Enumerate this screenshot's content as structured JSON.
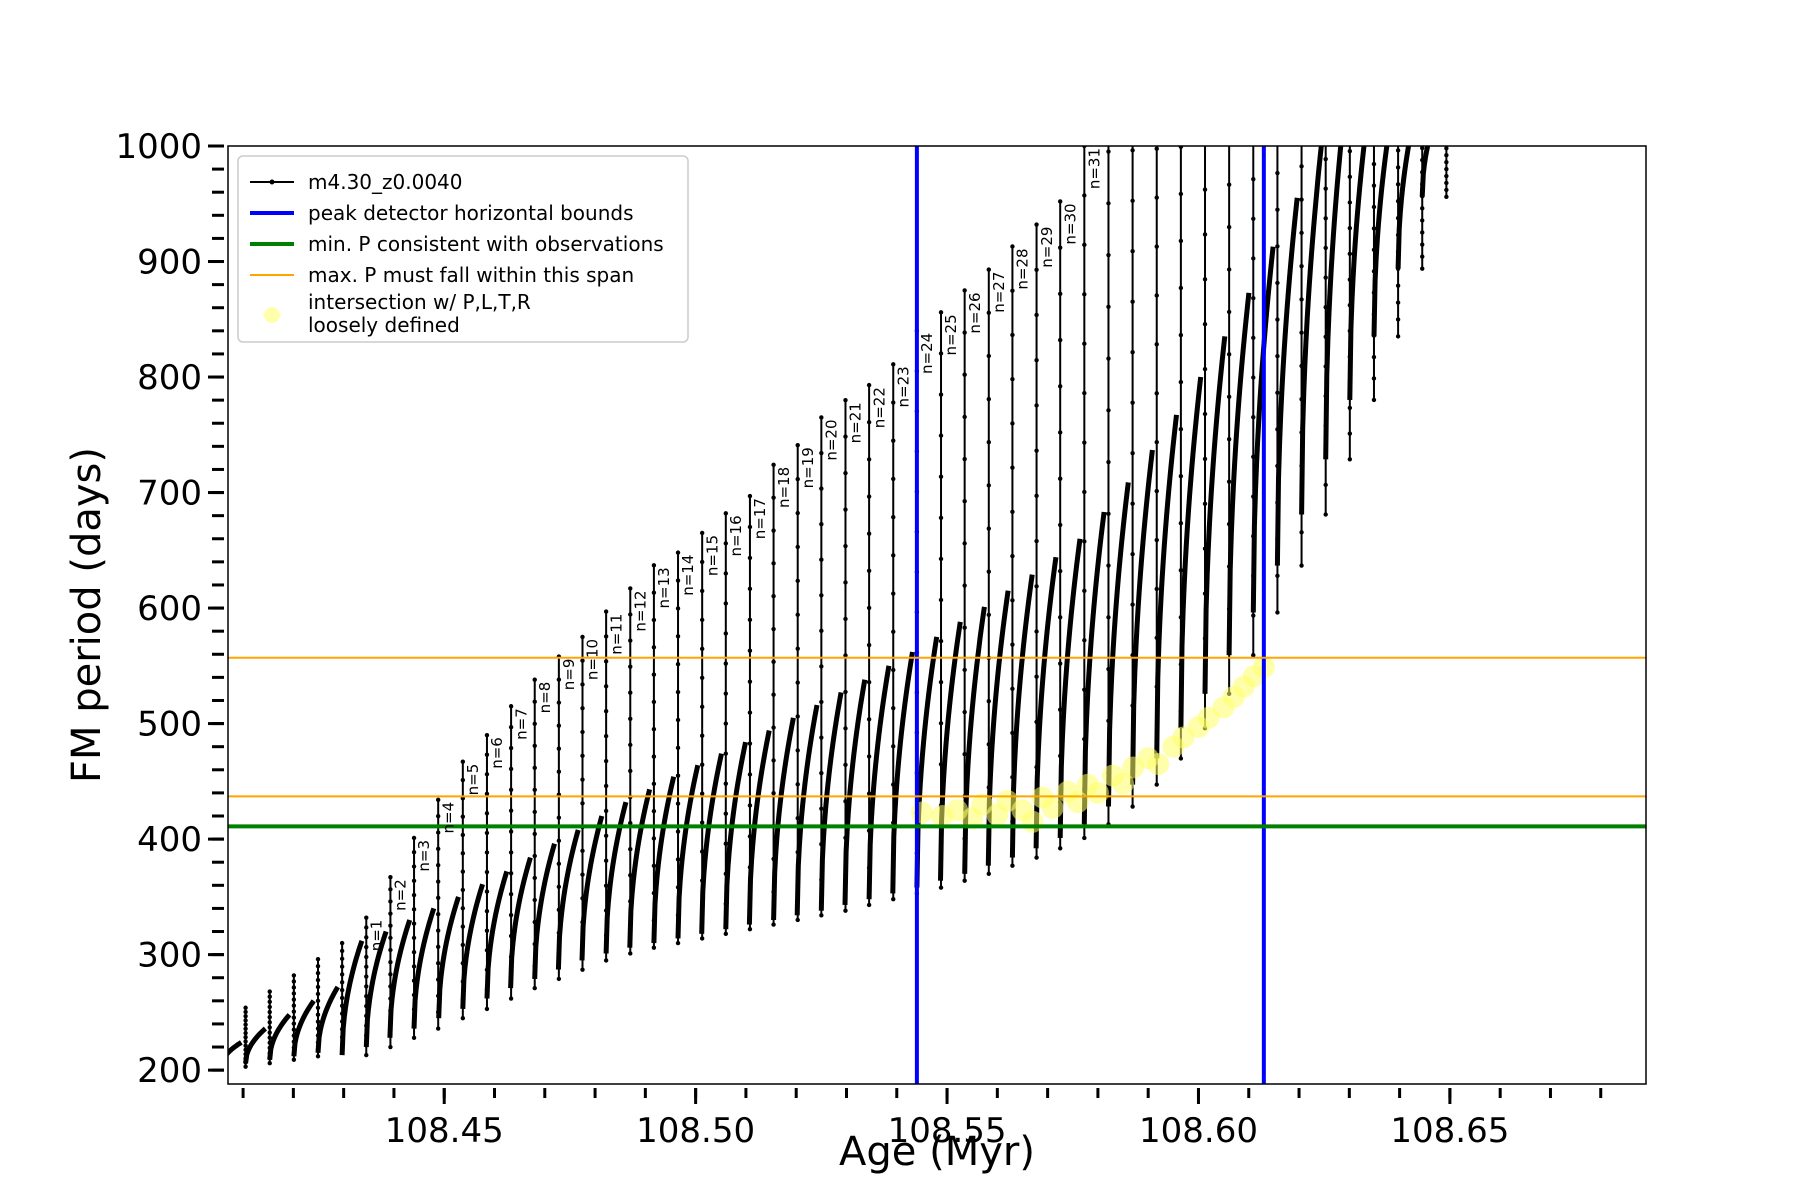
{
  "chart_data": {
    "type": "line",
    "xlabel": "Age (Myr)",
    "ylabel": "FM period (days)",
    "xlim": [
      108.407,
      108.689
    ],
    "ylim": [
      188,
      1000
    ],
    "x_ticks": [
      108.45,
      108.5,
      108.55,
      108.6,
      108.65
    ],
    "x_tick_labels": [
      "108.45",
      "108.50",
      "108.55",
      "108.60",
      "108.65"
    ],
    "y_ticks": [
      200,
      300,
      400,
      500,
      600,
      700,
      800,
      900,
      1000
    ],
    "y_tick_labels": [
      "200",
      "300",
      "400",
      "500",
      "600",
      "700",
      "800",
      "900",
      "1000"
    ],
    "grid": false,
    "legend_position": "top-left",
    "legend": [
      {
        "label": "m4.30_z0.0040",
        "style": "line-dot",
        "color": "#000000"
      },
      {
        "label": "peak detector horizontal bounds",
        "style": "thick-line",
        "color": "#0000ff"
      },
      {
        "label": "min. P consistent with observations",
        "style": "thick-line",
        "color": "#008000"
      },
      {
        "label": "max. P must fall within this span",
        "style": "thin-line",
        "color": "#ffa500"
      },
      {
        "label": "intersection w/ P,L,T,R",
        "label2": "loosely defined",
        "style": "marker",
        "color": "#ffff66"
      }
    ],
    "series": [
      {
        "name": "m4.30_z0.0040",
        "color": "#000000",
        "pulses": [
          {
            "n": 1,
            "label": "n=1",
            "x": 108.4345,
            "top": 332,
            "base": 213,
            "envelope": 312
          },
          {
            "n": 2,
            "label": "n=2",
            "x": 108.4393,
            "top": 367,
            "base": 220,
            "envelope": 320
          },
          {
            "n": 3,
            "label": "n=3",
            "x": 108.444,
            "top": 401,
            "base": 228,
            "envelope": 330
          },
          {
            "n": 4,
            "label": "n=4",
            "x": 108.4488,
            "top": 434,
            "base": 236,
            "envelope": 340
          },
          {
            "n": 5,
            "label": "n=5",
            "x": 108.4537,
            "top": 467,
            "base": 245,
            "envelope": 350
          },
          {
            "n": 6,
            "label": "n=6",
            "x": 108.4585,
            "top": 490,
            "base": 253,
            "envelope": 361
          },
          {
            "n": 7,
            "label": "n=7",
            "x": 108.4633,
            "top": 515,
            "base": 262,
            "envelope": 372
          },
          {
            "n": 8,
            "label": "n=8",
            "x": 108.468,
            "top": 538,
            "base": 271,
            "envelope": 384
          },
          {
            "n": 9,
            "label": "n=9",
            "x": 108.4728,
            "top": 558,
            "base": 279,
            "envelope": 396
          },
          {
            "n": 10,
            "label": "n=10",
            "x": 108.4775,
            "top": 575,
            "base": 287,
            "envelope": 408
          },
          {
            "n": 11,
            "label": "n=11",
            "x": 108.4822,
            "top": 597,
            "base": 295,
            "envelope": 420
          },
          {
            "n": 12,
            "label": "n=12",
            "x": 108.487,
            "top": 617,
            "base": 301,
            "envelope": 432
          },
          {
            "n": 13,
            "label": "n=13",
            "x": 108.4917,
            "top": 637,
            "base": 306,
            "envelope": 443
          },
          {
            "n": 14,
            "label": "n=14",
            "x": 108.4965,
            "top": 648,
            "base": 310,
            "envelope": 454
          },
          {
            "n": 15,
            "label": "n=15",
            "x": 108.5013,
            "top": 665,
            "base": 314,
            "envelope": 464
          },
          {
            "n": 16,
            "label": "n=16",
            "x": 108.506,
            "top": 682,
            "base": 318,
            "envelope": 474
          },
          {
            "n": 17,
            "label": "n=17",
            "x": 108.5108,
            "top": 697,
            "base": 322,
            "envelope": 484
          },
          {
            "n": 18,
            "label": "n=18",
            "x": 108.5155,
            "top": 724,
            "base": 326,
            "envelope": 494
          },
          {
            "n": 19,
            "label": "n=19",
            "x": 108.5203,
            "top": 741,
            "base": 330,
            "envelope": 505
          },
          {
            "n": 20,
            "label": "n=20",
            "x": 108.525,
            "top": 765,
            "base": 334,
            "envelope": 516
          },
          {
            "n": 21,
            "label": "n=21",
            "x": 108.5298,
            "top": 780,
            "base": 338,
            "envelope": 527
          },
          {
            "n": 22,
            "label": "n=22",
            "x": 108.5345,
            "top": 793,
            "base": 343,
            "envelope": 538
          },
          {
            "n": 23,
            "label": "n=23",
            "x": 108.5393,
            "top": 811,
            "base": 348,
            "envelope": 550
          },
          {
            "n": 24,
            "label": "n=24",
            "x": 108.544,
            "top": 840,
            "base": 353,
            "envelope": 562
          },
          {
            "n": 25,
            "label": "n=25",
            "x": 108.5488,
            "top": 856,
            "base": 358,
            "envelope": 575
          },
          {
            "n": 26,
            "label": "n=26",
            "x": 108.5535,
            "top": 875,
            "base": 364,
            "envelope": 588
          },
          {
            "n": 27,
            "label": "n=27",
            "x": 108.5583,
            "top": 893,
            "base": 370,
            "envelope": 601
          },
          {
            "n": 28,
            "label": "n=28",
            "x": 108.563,
            "top": 913,
            "base": 377,
            "envelope": 615
          },
          {
            "n": 29,
            "label": "n=29",
            "x": 108.5678,
            "top": 932,
            "base": 384,
            "envelope": 629
          },
          {
            "n": 30,
            "label": "n=30",
            "x": 108.5725,
            "top": 952,
            "base": 392,
            "envelope": 644
          },
          {
            "n": 31,
            "label": "n=31",
            "x": 108.5773,
            "top": 1000,
            "base": 401,
            "envelope": 660
          }
        ]
      }
    ],
    "reference_lines": {
      "vertical_blue": [
        108.544,
        108.613
      ],
      "horizontal_green": 411,
      "horizontal_orange": [
        437,
        557
      ]
    },
    "intersection_points": [
      [
        108.545,
        423
      ],
      [
        108.549,
        420
      ],
      [
        108.552,
        425
      ],
      [
        108.555,
        418
      ],
      [
        108.557,
        430
      ],
      [
        108.56,
        421
      ],
      [
        108.562,
        433
      ],
      [
        108.565,
        425
      ],
      [
        108.567,
        415
      ],
      [
        108.569,
        436
      ],
      [
        108.571,
        427
      ],
      [
        108.574,
        441
      ],
      [
        108.576,
        432
      ],
      [
        108.578,
        447
      ],
      [
        108.58,
        440
      ],
      [
        108.583,
        455
      ],
      [
        108.585,
        448
      ],
      [
        108.587,
        462
      ],
      [
        108.59,
        470
      ],
      [
        108.592,
        465
      ],
      [
        108.595,
        480
      ],
      [
        108.597,
        488
      ],
      [
        108.6,
        497
      ],
      [
        108.602,
        505
      ],
      [
        108.605,
        514
      ],
      [
        108.607,
        523
      ],
      [
        108.609,
        532
      ],
      [
        108.611,
        541
      ],
      [
        108.613,
        549
      ]
    ]
  }
}
